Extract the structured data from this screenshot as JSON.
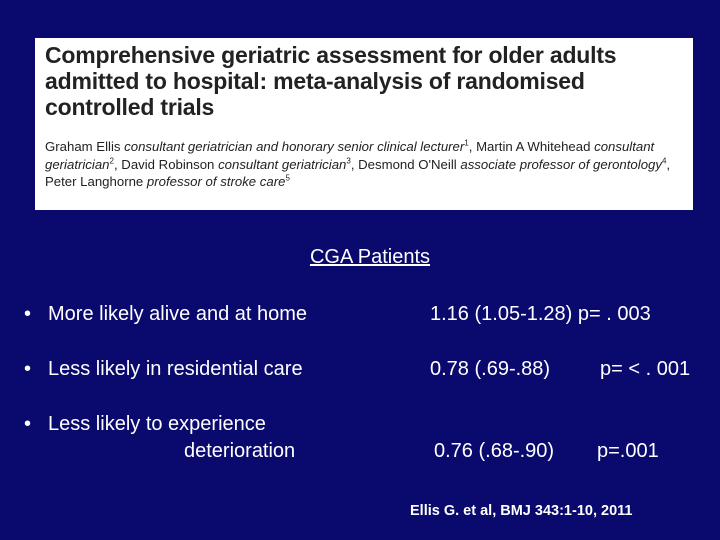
{
  "paper": {
    "title_line1": "Comprehensive geriatric assessment for older adults",
    "title_line2": "admitted to hospital: meta-analysis of randomised",
    "title_line3": "controlled trials",
    "authors": {
      "a1_name": "Graham Ellis",
      "a1_role": "consultant geriatrician and honorary senior clinical lecturer",
      "a1_sup": "1",
      "a2_name": "Martin A Whitehead",
      "a2_role": "consultant geriatrician",
      "a2_sup": "2",
      "a3_name": "David Robinson",
      "a3_role": "consultant geriatrician",
      "a3_sup": "3",
      "a4_name": "Desmond O'Neill",
      "a4_role": "associate professor of gerontology",
      "a4_sup": "4",
      "a5_name": "Peter Langhorne",
      "a5_role": "professor of stroke care",
      "a5_sup": "5"
    }
  },
  "section_heading": "CGA Patients",
  "rows": [
    {
      "label": "More likely alive and at home",
      "value": "1.16 (1.05-1.28) p= . 003"
    },
    {
      "label": "Less likely in residential care",
      "value_ci": "0.78 (.69-.88)",
      "value_p": "p= < . 001"
    },
    {
      "label_line1": "Less likely to experience",
      "label_line2": "deterioration",
      "value_ci": "0.76 (.68-.90)",
      "value_p": "p=.001"
    }
  ],
  "bullet_char": "•",
  "citation": "Ellis G. et al, BMJ 343:1-10, 2011",
  "colors": {
    "background": "#0a0a6e",
    "text": "#ffffff",
    "paper_bg": "#ffffff",
    "paper_text": "#222222"
  }
}
